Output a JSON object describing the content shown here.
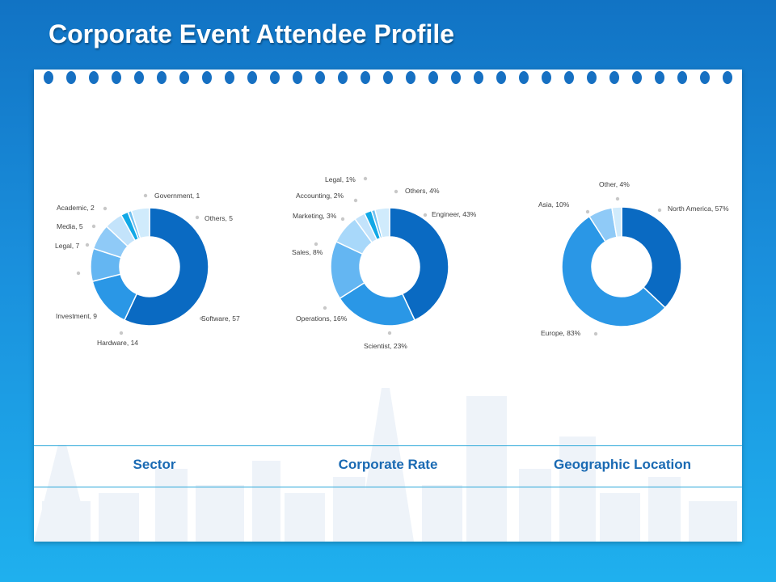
{
  "title": "Corporate Event Attendee Profile",
  "colors": {
    "dark_blue": "#0a6ac2",
    "mid_blue": "#2a97e6",
    "sky_blue": "#64b6f2",
    "light_blue": "#a8d8fa",
    "pale_blue": "#d0ebfc",
    "cyan": "#11a8e6",
    "caption": "#1a6ab3"
  },
  "chart_data": [
    {
      "type": "pie",
      "subtype": "donut",
      "caption": "Sector",
      "slices": [
        {
          "label": "Software, 57",
          "value": 57
        },
        {
          "label": "Hardware, 14",
          "value": 14
        },
        {
          "label": "Investment, 9",
          "value": 9
        },
        {
          "label": "Legal, 7",
          "value": 7
        },
        {
          "label": "Media, 5",
          "value": 5
        },
        {
          "label": "Academic, 2",
          "value": 2
        },
        {
          "label": "Government, 1",
          "value": 1
        },
        {
          "label": "Others, 5",
          "value": 5
        }
      ]
    },
    {
      "type": "pie",
      "subtype": "donut",
      "caption": "Corporate Rate",
      "slices": [
        {
          "label": "Engineer, 43%",
          "value": 43
        },
        {
          "label": "Scientist, 23%",
          "value": 23
        },
        {
          "label": "Operations, 16%",
          "value": 16
        },
        {
          "label": "Sales, 8%",
          "value": 8
        },
        {
          "label": "Marketing, 3%",
          "value": 3
        },
        {
          "label": "Accounting, 2%",
          "value": 2
        },
        {
          "label": "Legal, 1%",
          "value": 1
        },
        {
          "label": "Others, 4%",
          "value": 4
        }
      ]
    },
    {
      "type": "pie",
      "subtype": "donut",
      "caption": "Geographic Location",
      "slices": [
        {
          "label": "North America, 57%",
          "value": 57
        },
        {
          "label": "Europe, 83%",
          "value": 83
        },
        {
          "label": "Asia, 10%",
          "value": 10
        },
        {
          "label": "Other, 4%",
          "value": 4
        }
      ]
    }
  ]
}
